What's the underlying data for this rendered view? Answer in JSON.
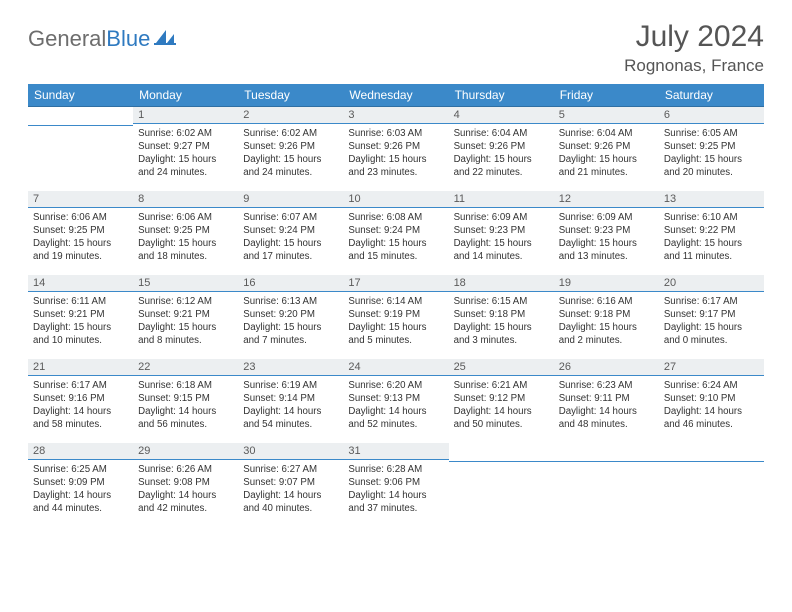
{
  "logo": {
    "part1": "General",
    "part2": "Blue"
  },
  "title": "July 2024",
  "location": "Rognonas, France",
  "daynames": [
    "Sunday",
    "Monday",
    "Tuesday",
    "Wednesday",
    "Thursday",
    "Friday",
    "Saturday"
  ],
  "colors": {
    "header_bg": "#3b89c9",
    "rule": "#3b89c9",
    "daybar": "#eceff1"
  },
  "weeks": [
    [
      {
        "n": "",
        "lines": []
      },
      {
        "n": "1",
        "lines": [
          "Sunrise: 6:02 AM",
          "Sunset: 9:27 PM",
          "Daylight: 15 hours",
          "and 24 minutes."
        ]
      },
      {
        "n": "2",
        "lines": [
          "Sunrise: 6:02 AM",
          "Sunset: 9:26 PM",
          "Daylight: 15 hours",
          "and 24 minutes."
        ]
      },
      {
        "n": "3",
        "lines": [
          "Sunrise: 6:03 AM",
          "Sunset: 9:26 PM",
          "Daylight: 15 hours",
          "and 23 minutes."
        ]
      },
      {
        "n": "4",
        "lines": [
          "Sunrise: 6:04 AM",
          "Sunset: 9:26 PM",
          "Daylight: 15 hours",
          "and 22 minutes."
        ]
      },
      {
        "n": "5",
        "lines": [
          "Sunrise: 6:04 AM",
          "Sunset: 9:26 PM",
          "Daylight: 15 hours",
          "and 21 minutes."
        ]
      },
      {
        "n": "6",
        "lines": [
          "Sunrise: 6:05 AM",
          "Sunset: 9:25 PM",
          "Daylight: 15 hours",
          "and 20 minutes."
        ]
      }
    ],
    [
      {
        "n": "7",
        "lines": [
          "Sunrise: 6:06 AM",
          "Sunset: 9:25 PM",
          "Daylight: 15 hours",
          "and 19 minutes."
        ]
      },
      {
        "n": "8",
        "lines": [
          "Sunrise: 6:06 AM",
          "Sunset: 9:25 PM",
          "Daylight: 15 hours",
          "and 18 minutes."
        ]
      },
      {
        "n": "9",
        "lines": [
          "Sunrise: 6:07 AM",
          "Sunset: 9:24 PM",
          "Daylight: 15 hours",
          "and 17 minutes."
        ]
      },
      {
        "n": "10",
        "lines": [
          "Sunrise: 6:08 AM",
          "Sunset: 9:24 PM",
          "Daylight: 15 hours",
          "and 15 minutes."
        ]
      },
      {
        "n": "11",
        "lines": [
          "Sunrise: 6:09 AM",
          "Sunset: 9:23 PM",
          "Daylight: 15 hours",
          "and 14 minutes."
        ]
      },
      {
        "n": "12",
        "lines": [
          "Sunrise: 6:09 AM",
          "Sunset: 9:23 PM",
          "Daylight: 15 hours",
          "and 13 minutes."
        ]
      },
      {
        "n": "13",
        "lines": [
          "Sunrise: 6:10 AM",
          "Sunset: 9:22 PM",
          "Daylight: 15 hours",
          "and 11 minutes."
        ]
      }
    ],
    [
      {
        "n": "14",
        "lines": [
          "Sunrise: 6:11 AM",
          "Sunset: 9:21 PM",
          "Daylight: 15 hours",
          "and 10 minutes."
        ]
      },
      {
        "n": "15",
        "lines": [
          "Sunrise: 6:12 AM",
          "Sunset: 9:21 PM",
          "Daylight: 15 hours",
          "and 8 minutes."
        ]
      },
      {
        "n": "16",
        "lines": [
          "Sunrise: 6:13 AM",
          "Sunset: 9:20 PM",
          "Daylight: 15 hours",
          "and 7 minutes."
        ]
      },
      {
        "n": "17",
        "lines": [
          "Sunrise: 6:14 AM",
          "Sunset: 9:19 PM",
          "Daylight: 15 hours",
          "and 5 minutes."
        ]
      },
      {
        "n": "18",
        "lines": [
          "Sunrise: 6:15 AM",
          "Sunset: 9:18 PM",
          "Daylight: 15 hours",
          "and 3 minutes."
        ]
      },
      {
        "n": "19",
        "lines": [
          "Sunrise: 6:16 AM",
          "Sunset: 9:18 PM",
          "Daylight: 15 hours",
          "and 2 minutes."
        ]
      },
      {
        "n": "20",
        "lines": [
          "Sunrise: 6:17 AM",
          "Sunset: 9:17 PM",
          "Daylight: 15 hours",
          "and 0 minutes."
        ]
      }
    ],
    [
      {
        "n": "21",
        "lines": [
          "Sunrise: 6:17 AM",
          "Sunset: 9:16 PM",
          "Daylight: 14 hours",
          "and 58 minutes."
        ]
      },
      {
        "n": "22",
        "lines": [
          "Sunrise: 6:18 AM",
          "Sunset: 9:15 PM",
          "Daylight: 14 hours",
          "and 56 minutes."
        ]
      },
      {
        "n": "23",
        "lines": [
          "Sunrise: 6:19 AM",
          "Sunset: 9:14 PM",
          "Daylight: 14 hours",
          "and 54 minutes."
        ]
      },
      {
        "n": "24",
        "lines": [
          "Sunrise: 6:20 AM",
          "Sunset: 9:13 PM",
          "Daylight: 14 hours",
          "and 52 minutes."
        ]
      },
      {
        "n": "25",
        "lines": [
          "Sunrise: 6:21 AM",
          "Sunset: 9:12 PM",
          "Daylight: 14 hours",
          "and 50 minutes."
        ]
      },
      {
        "n": "26",
        "lines": [
          "Sunrise: 6:23 AM",
          "Sunset: 9:11 PM",
          "Daylight: 14 hours",
          "and 48 minutes."
        ]
      },
      {
        "n": "27",
        "lines": [
          "Sunrise: 6:24 AM",
          "Sunset: 9:10 PM",
          "Daylight: 14 hours",
          "and 46 minutes."
        ]
      }
    ],
    [
      {
        "n": "28",
        "lines": [
          "Sunrise: 6:25 AM",
          "Sunset: 9:09 PM",
          "Daylight: 14 hours",
          "and 44 minutes."
        ]
      },
      {
        "n": "29",
        "lines": [
          "Sunrise: 6:26 AM",
          "Sunset: 9:08 PM",
          "Daylight: 14 hours",
          "and 42 minutes."
        ]
      },
      {
        "n": "30",
        "lines": [
          "Sunrise: 6:27 AM",
          "Sunset: 9:07 PM",
          "Daylight: 14 hours",
          "and 40 minutes."
        ]
      },
      {
        "n": "31",
        "lines": [
          "Sunrise: 6:28 AM",
          "Sunset: 9:06 PM",
          "Daylight: 14 hours",
          "and 37 minutes."
        ]
      },
      {
        "n": "",
        "lines": []
      },
      {
        "n": "",
        "lines": []
      },
      {
        "n": "",
        "lines": []
      }
    ]
  ]
}
